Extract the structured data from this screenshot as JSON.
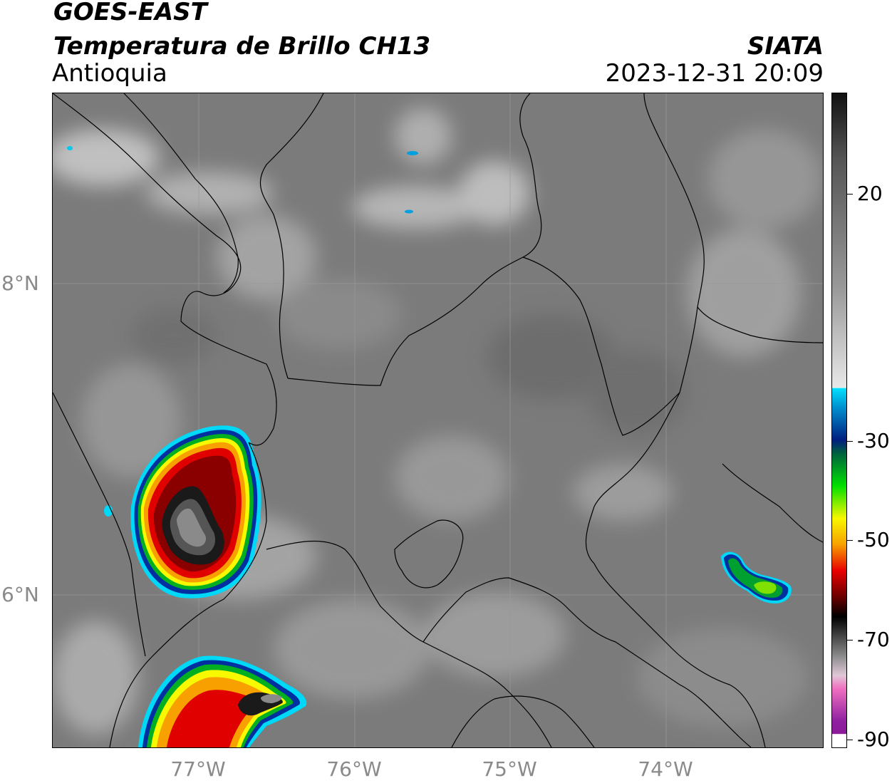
{
  "header": {
    "satellite": "GOES-EAST",
    "product": "Temperatura de Brillo CH13",
    "region": "Antioquia",
    "agency": "SIATA",
    "datetime": "2023-12-31 20:09"
  },
  "map": {
    "lat_ticks": [
      "8°N",
      "6°N"
    ],
    "lon_ticks": [
      "77°W",
      "76°W",
      "75°W",
      "74°W"
    ],
    "extent": {
      "lon": [
        -77.95,
        -73.0
      ],
      "lat": [
        4.95,
        9.15
      ]
    }
  },
  "colorbar": {
    "range": [
      -90,
      35
    ],
    "tick_labels": [
      "20",
      "-30",
      "-50",
      "-70",
      "-90"
    ],
    "colors": {
      "warm_grey_dark": "#161616",
      "warm_grey_light": "#ededed",
      "cyan": "#00d8f8",
      "blue": "#0030a0",
      "green": "#00c000",
      "yellow": "#f8f800",
      "orange": "#f8a000",
      "red": "#e00000",
      "dark_red": "#600000",
      "black": "#000000",
      "pink": "#f070c0",
      "purple": "#9020a0"
    }
  }
}
